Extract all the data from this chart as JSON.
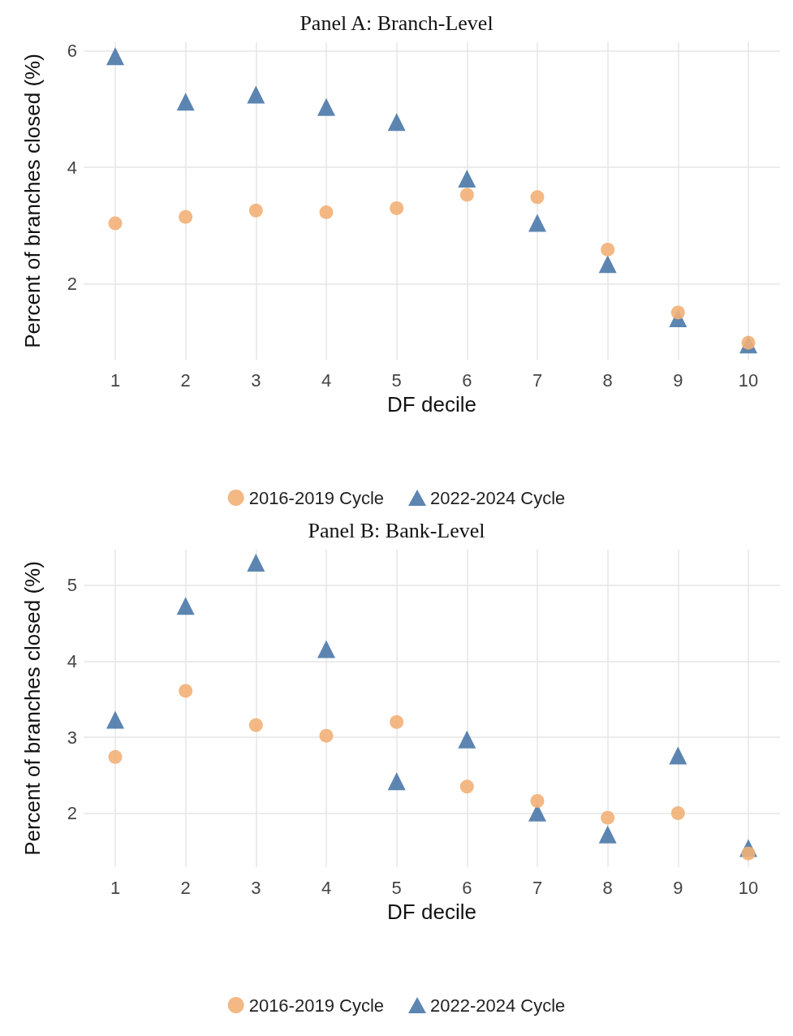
{
  "chart_data": [
    {
      "type": "scatter",
      "title": "Panel A: Branch-Level",
      "xlabel": "DF decile",
      "ylabel": "Percent of branches closed (%)",
      "x": [
        1,
        2,
        3,
        4,
        5,
        6,
        7,
        8,
        9,
        10
      ],
      "xlim": [
        0.55,
        10.45
      ],
      "xticks": [
        1,
        2,
        3,
        4,
        5,
        6,
        7,
        8,
        9,
        10
      ],
      "ylim": [
        0.7,
        6.15
      ],
      "yticks": [
        2,
        4,
        6
      ],
      "grid": true,
      "legend": "bottom",
      "series": [
        {
          "name": "2016-2019 Cycle",
          "color": "#f2b077",
          "marker": "circle",
          "values": [
            3.04,
            3.15,
            3.26,
            3.23,
            3.3,
            3.53,
            3.49,
            2.59,
            1.51,
            0.99
          ]
        },
        {
          "name": "2022-2024 Cycle",
          "color": "#4a78a8",
          "marker": "triangle",
          "values": [
            5.91,
            5.13,
            5.25,
            5.04,
            4.78,
            3.81,
            3.05,
            2.34,
            1.41,
            0.96
          ]
        }
      ]
    },
    {
      "type": "scatter",
      "title": "Panel B: Bank-Level",
      "xlabel": "DF decile",
      "ylabel": "Percent of branches closed (%)",
      "x": [
        1,
        2,
        3,
        4,
        5,
        6,
        7,
        8,
        9,
        10
      ],
      "xlim": [
        0.55,
        10.45
      ],
      "xticks": [
        1,
        2,
        3,
        4,
        5,
        6,
        7,
        8,
        9,
        10
      ],
      "ylim": [
        1.29,
        5.47
      ],
      "yticks": [
        2,
        3,
        4,
        5
      ],
      "grid": true,
      "legend": "bottom",
      "series": [
        {
          "name": "2016-2019 Cycle",
          "color": "#f2b077",
          "marker": "circle",
          "values": [
            2.74,
            3.61,
            3.16,
            3.02,
            3.2,
            2.35,
            2.16,
            1.94,
            2.0,
            1.47
          ]
        },
        {
          "name": "2022-2024 Cycle",
          "color": "#4a78a8",
          "marker": "triangle",
          "values": [
            3.23,
            4.73,
            5.3,
            4.16,
            2.42,
            2.97,
            2.01,
            1.72,
            2.76,
            1.54
          ]
        }
      ]
    }
  ]
}
